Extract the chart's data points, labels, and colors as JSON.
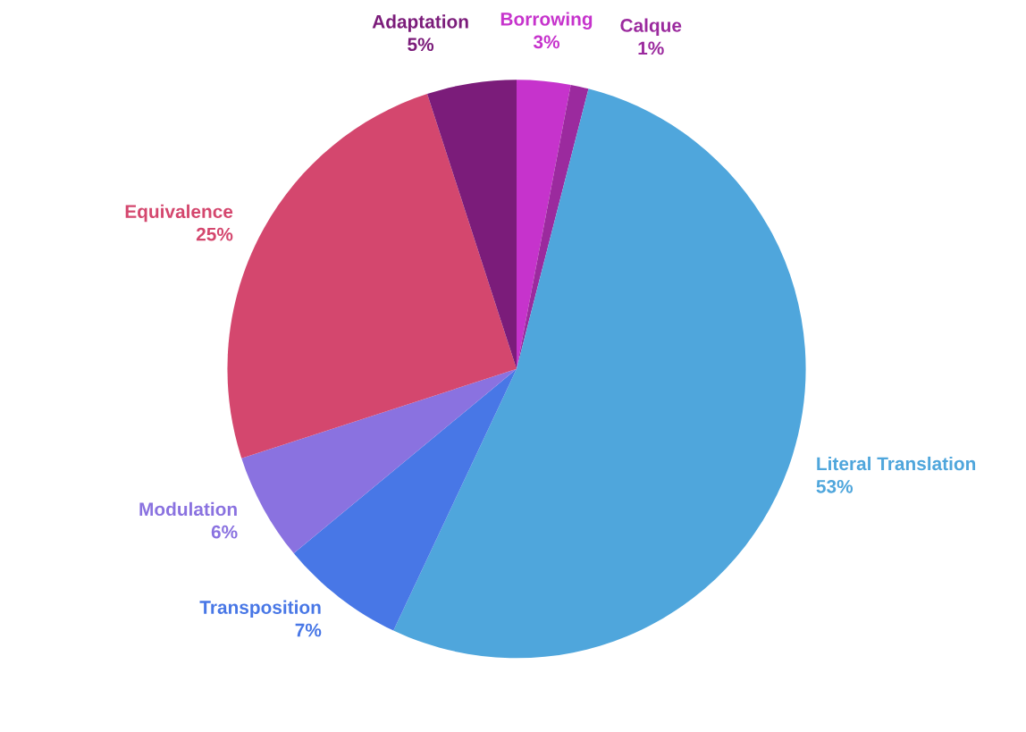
{
  "chart_data": {
    "type": "pie",
    "categories": [
      "Borrowing",
      "Calque",
      "Literal Translation",
      "Transposition",
      "Modulation",
      "Equivalence",
      "Adaptation"
    ],
    "values": [
      3,
      1,
      53,
      7,
      6,
      25,
      5
    ],
    "value_labels": [
      "3%",
      "1%",
      "53%",
      "7%",
      "6%",
      "25%",
      "5%"
    ],
    "colors": [
      "#c633cc",
      "#9b2a9e",
      "#4fa6dc",
      "#4877e6",
      "#8a72e0",
      "#d4476e",
      "#7b1c7a"
    ]
  }
}
